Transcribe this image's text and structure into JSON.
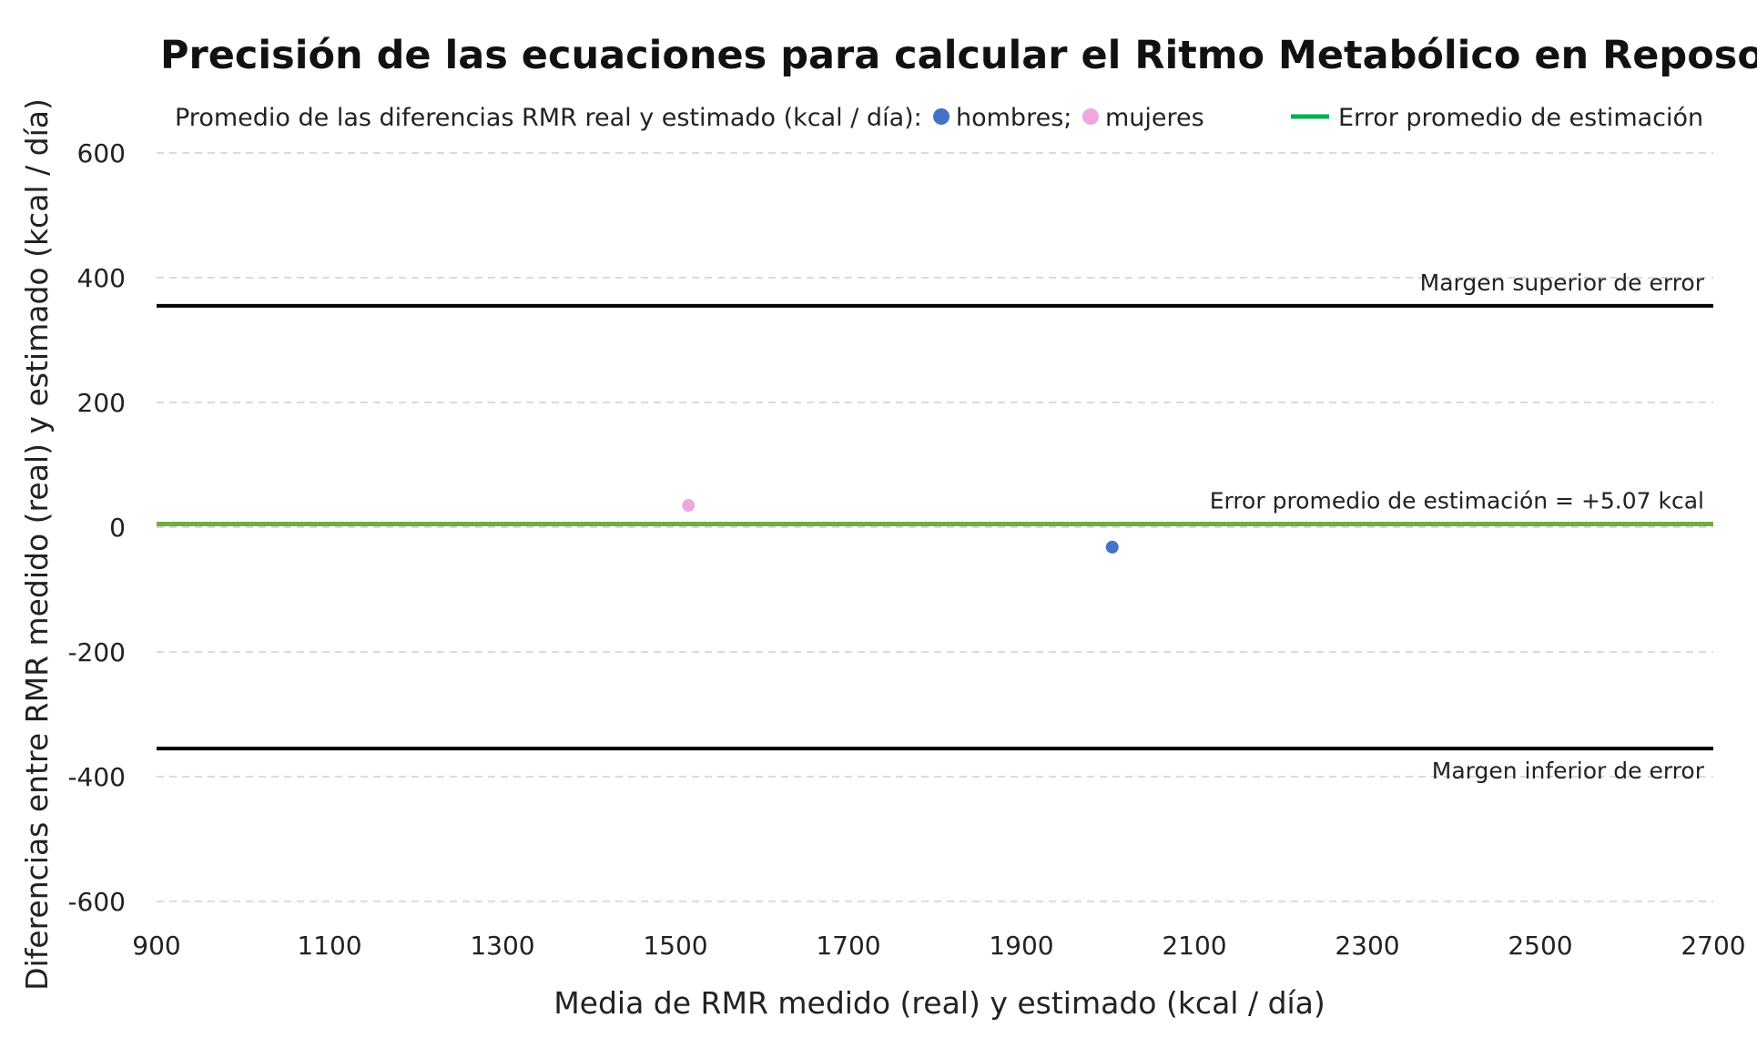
{
  "chart_data": {
    "type": "scatter",
    "title": "Precisión de las ecuaciones para calcular el Ritmo Metabólico en Reposo",
    "xlabel": "Media de RMR medido (real) y estimado (kcal / día)",
    "ylabel": "Diferencias entre RMR medido (real) y estimado (kcal / día)",
    "xlim": [
      900,
      2700
    ],
    "ylim": [
      -600,
      600
    ],
    "x_ticks": [
      "900",
      "1100",
      "1300",
      "1500",
      "1700",
      "1900",
      "2100",
      "2300",
      "2500",
      "2700"
    ],
    "y_ticks": [
      "600",
      "400",
      "200",
      "0",
      "-200",
      "-400",
      "-600"
    ],
    "grid": true,
    "legend": {
      "prefix": "Promedio de las diferencias RMR real y estimado (kcal / día):",
      "items": [
        {
          "label": "hombres;",
          "color": "#4472c4",
          "marker": "circle"
        },
        {
          "label": "mujeres",
          "color": "#f0a6e0",
          "marker": "circle"
        },
        {
          "label": "Error promedio de estimación",
          "color": "#00b050",
          "marker": "line"
        }
      ]
    },
    "series": [
      {
        "name": "hombres",
        "color": "#4472c4",
        "points": [
          {
            "x": 2005,
            "y": -32
          }
        ]
      },
      {
        "name": "mujeres",
        "color": "#f0a6e0",
        "points": [
          {
            "x": 1515,
            "y": 35
          }
        ]
      }
    ],
    "reference_lines": [
      {
        "name": "upper",
        "y": 355,
        "color": "#000000",
        "label": "Margen superior de error"
      },
      {
        "name": "mean",
        "y": 5.07,
        "color": "#70ad47",
        "label": "Error promedio de estimación = +5.07 kcal"
      },
      {
        "name": "lower",
        "y": -355,
        "color": "#000000",
        "label": "Margen inferior de error"
      }
    ]
  }
}
